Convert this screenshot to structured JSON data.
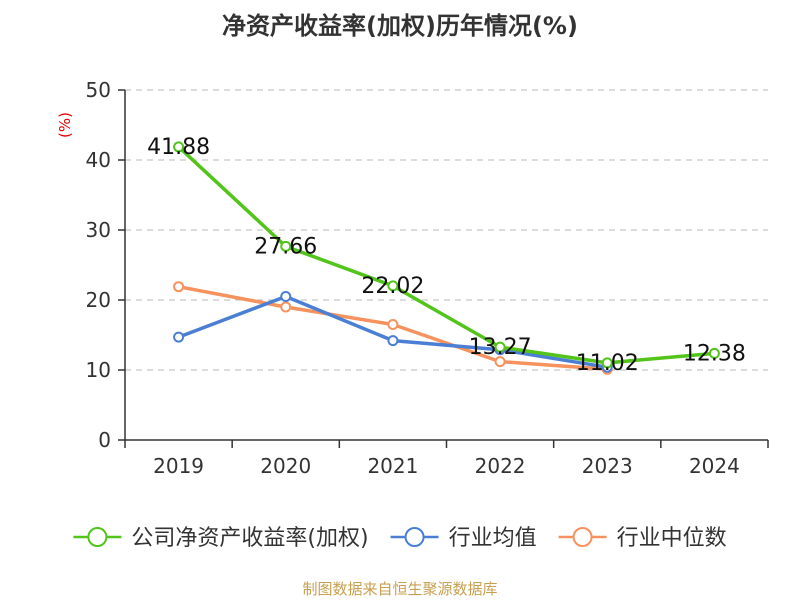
{
  "chart_data": {
    "type": "line",
    "title": "净资产收益率(加权)历年情况(%)",
    "ylabel": "(%)",
    "categories": [
      "2019",
      "2020",
      "2021",
      "2022",
      "2023",
      "2024"
    ],
    "ylim": [
      0,
      50
    ],
    "yticks": [
      0,
      10,
      20,
      30,
      40,
      50
    ],
    "grid": true,
    "legend_position": "bottom",
    "series": [
      {
        "name": "公司净资产收益率(加权)",
        "color": "#52c41a",
        "values": [
          41.88,
          27.66,
          22.02,
          13.27,
          11.02,
          12.38
        ],
        "labels": [
          "41.88",
          "27.66",
          "22.02",
          "13.27",
          "11.02",
          "12.38"
        ]
      },
      {
        "name": "行业均值",
        "color": "#4a7fd4",
        "values": [
          14.7,
          20.5,
          14.2,
          12.9,
          10.4,
          null
        ]
      },
      {
        "name": "行业中位数",
        "color": "#f5925e",
        "values": [
          21.9,
          19.0,
          16.5,
          11.2,
          10.1,
          null
        ]
      }
    ]
  },
  "source": "制图数据来自恒生聚源数据库"
}
